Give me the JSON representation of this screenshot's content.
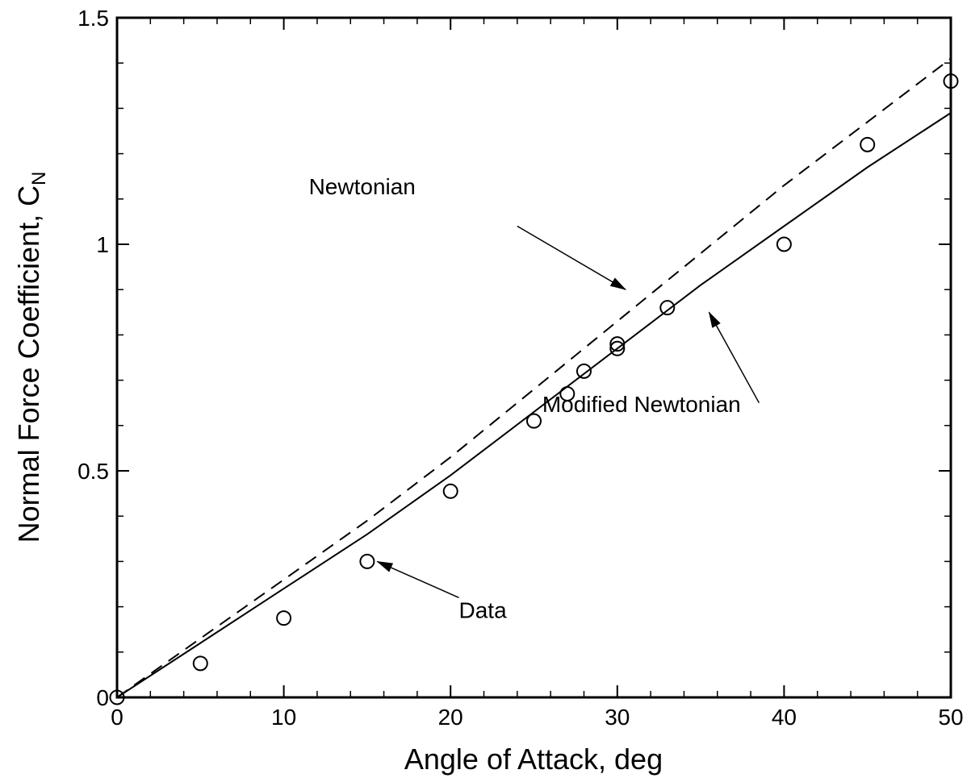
{
  "chart_data": {
    "type": "line",
    "xlabel": "Angle of Attack, deg",
    "ylabel": "Normal Force Coefficient, C",
    "ylabel_subscript": "N",
    "xlim": [
      0,
      50
    ],
    "ylim": [
      0,
      1.5
    ],
    "x_ticks": [
      0,
      10,
      20,
      30,
      40,
      50
    ],
    "y_ticks": [
      0,
      0.5,
      1,
      1.5
    ],
    "x_tick_labels": [
      "0",
      "10",
      "20",
      "30",
      "40",
      "50"
    ],
    "y_tick_labels": [
      "0",
      "0.5",
      "1",
      "1.5"
    ],
    "x_minor_step": 2,
    "y_minor_step": 0.1,
    "grid": false,
    "legend": "none",
    "series": [
      {
        "name": "Newtonian",
        "style": "dashed",
        "x": [
          0,
          5,
          10,
          15,
          20,
          25,
          30,
          35,
          40,
          45,
          50
        ],
        "y": [
          0,
          0.13,
          0.26,
          0.39,
          0.53,
          0.68,
          0.83,
          0.98,
          1.13,
          1.27,
          1.41
        ]
      },
      {
        "name": "Modified Newtonian",
        "style": "solid",
        "x": [
          0,
          5,
          10,
          15,
          20,
          25,
          30,
          35,
          40,
          45,
          50
        ],
        "y": [
          0,
          0.12,
          0.24,
          0.36,
          0.49,
          0.63,
          0.77,
          0.91,
          1.04,
          1.17,
          1.29
        ]
      },
      {
        "name": "Data",
        "style": "markers",
        "marker": "open-circle",
        "x": [
          0,
          5,
          10,
          15,
          20,
          25,
          27,
          28,
          30,
          30,
          33,
          40,
          45,
          50
        ],
        "y": [
          0,
          0.075,
          0.175,
          0.3,
          0.455,
          0.61,
          0.67,
          0.72,
          0.77,
          0.78,
          0.86,
          1.0,
          1.22,
          1.36
        ]
      }
    ],
    "annotations": [
      {
        "text": "Newtonian",
        "text_at": [
          11.5,
          1.11
        ],
        "arrow_from": [
          24,
          1.04
        ],
        "arrow_to": [
          30.5,
          0.9
        ]
      },
      {
        "text": "Modified Newtonian",
        "text_at": [
          25.5,
          0.63
        ],
        "arrow_from": [
          38.5,
          0.65
        ],
        "arrow_to": [
          35.5,
          0.85
        ]
      },
      {
        "text": "Data",
        "text_at": [
          20.5,
          0.175
        ],
        "arrow_from": [
          20.5,
          0.22
        ],
        "arrow_to": [
          15.6,
          0.3
        ]
      }
    ]
  }
}
